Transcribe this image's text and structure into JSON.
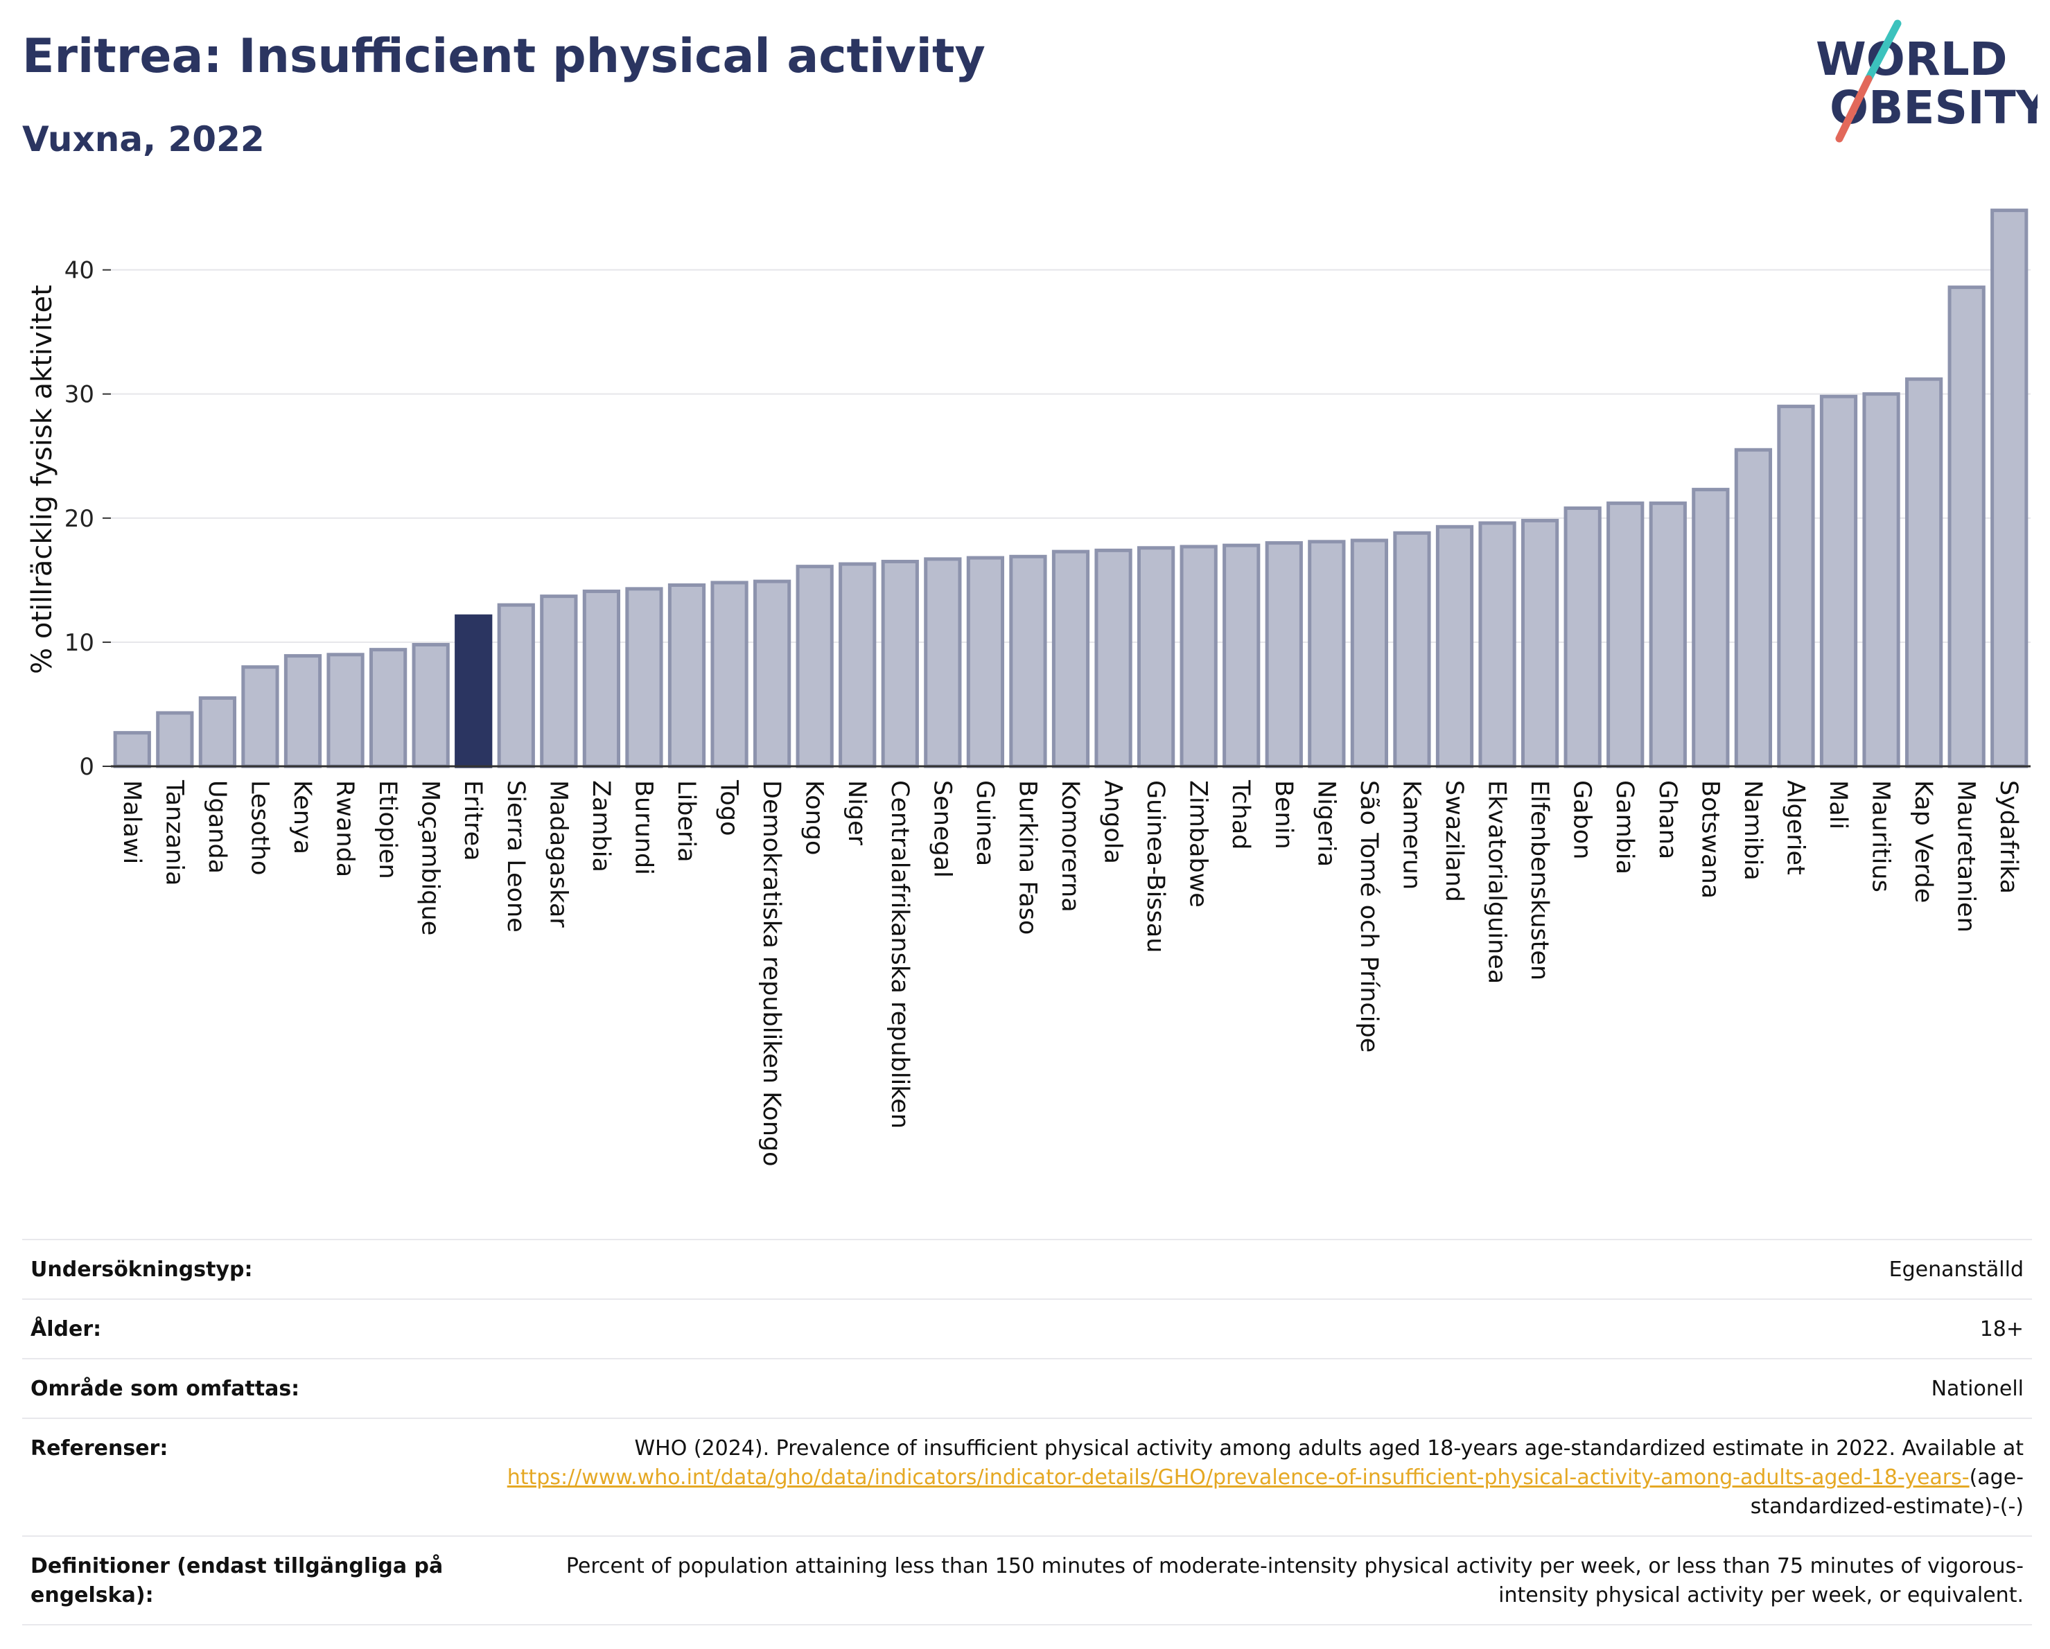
{
  "header": {
    "title": "Eritrea: Insufficient physical activity",
    "subtitle": "Vuxna, 2022"
  },
  "logo": {
    "line1": "WORLD",
    "line2": "OBESITY",
    "colors": {
      "text": "#2b3561",
      "slash_top": "#3cc2bd",
      "slash_bottom": "#e2685a"
    }
  },
  "chart_data": {
    "type": "bar",
    "title": "Eritrea: Insufficient physical activity",
    "subtitle": "Vuxna, 2022",
    "ylabel": "% otillräcklig fysisk aktivitet",
    "xlabel": "",
    "ylim": [
      0,
      45
    ],
    "yticks": [
      0,
      10,
      20,
      30,
      40
    ],
    "grid": true,
    "legend": "none",
    "highlight": "Eritrea",
    "colors": {
      "bar": "#b9bdce",
      "bar_edge": "#8d93ad",
      "highlight": "#2b3561",
      "grid": "#e6e6ea"
    },
    "categories": [
      "Malawi",
      "Tanzania",
      "Uganda",
      "Lesotho",
      "Kenya",
      "Rwanda",
      "Etiopien",
      "Moçambique",
      "Eritrea",
      "Sierra Leone",
      "Madagaskar",
      "Zambia",
      "Burundi",
      "Liberia",
      "Togo",
      "Demokratiska republiken Kongo",
      "Kongo",
      "Niger",
      "Centralafrikanska republiken",
      "Senegal",
      "Guinea",
      "Burkina Faso",
      "Komorerna",
      "Angola",
      "Guinea-Bissau",
      "Zimbabwe",
      "Tchad",
      "Benin",
      "Nigeria",
      "São Tomé och Príncipe",
      "Kamerun",
      "Swaziland",
      "Ekvatorialguinea",
      "Elfenbenskusten",
      "Gabon",
      "Gambia",
      "Ghana",
      "Botswana",
      "Namibia",
      "Algeriet",
      "Mali",
      "Mauritius",
      "Kap Verde",
      "Mauretanien",
      "Sydafrika"
    ],
    "values": [
      2.7,
      4.3,
      5.5,
      8.0,
      8.9,
      9.0,
      9.4,
      9.8,
      12.1,
      13.0,
      13.7,
      14.1,
      14.3,
      14.6,
      14.8,
      14.9,
      16.1,
      16.3,
      16.5,
      16.7,
      16.8,
      16.9,
      17.3,
      17.4,
      17.6,
      17.7,
      17.8,
      18.0,
      18.1,
      18.2,
      18.8,
      19.3,
      19.6,
      19.8,
      20.8,
      21.2,
      21.2,
      22.3,
      25.5,
      29.0,
      29.8,
      30.0,
      31.2,
      38.6,
      44.8
    ]
  },
  "info": {
    "survey_label": "Undersökningstyp:",
    "survey_value": "Egenanställd",
    "age_label": "Ålder:",
    "age_value": "18+",
    "area_label": "Område som omfattas:",
    "area_value": "Nationell",
    "ref_label": "Referenser:",
    "ref_text": "WHO (2024). Prevalence of insufficient physical activity among adults aged 18-years age-standardized estimate in 2022. Available at",
    "ref_link": "https://www.who.int/data/gho/data/indicators/indicator-details/GHO/prevalence-of-insufficient-physical-activity-among-adults-aged-18-years-",
    "ref_tail": "(age-standardized-estimate)-(-)",
    "def_label": "Definitioner (endast tillgängliga på engelska):",
    "def_text": "Percent of population attaining less than 150 minutes of moderate-intensity physical activity per week, or less than 75 minutes of vigorous-intensity physical activity per week, or equivalent."
  }
}
